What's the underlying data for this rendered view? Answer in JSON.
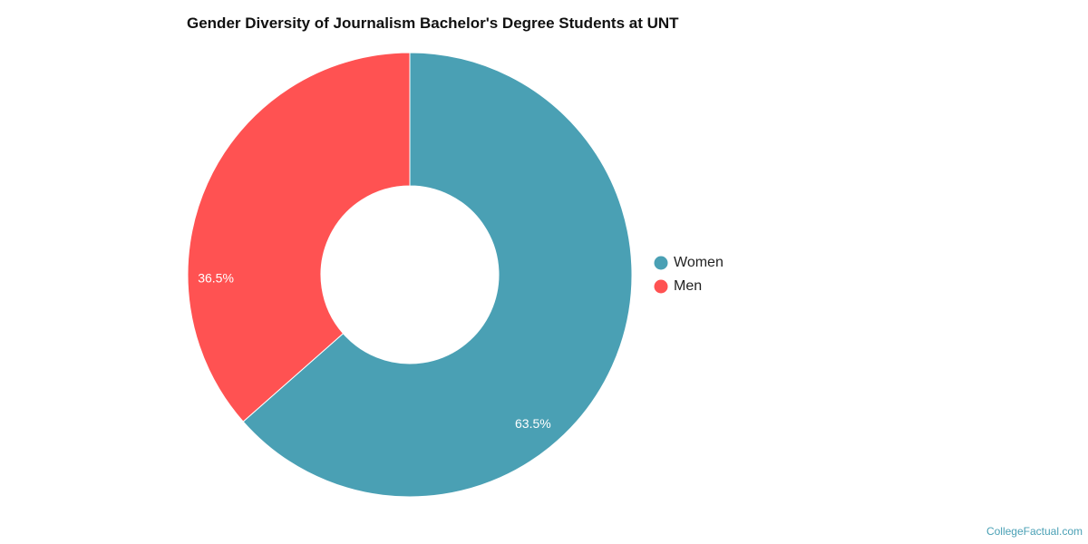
{
  "chart_data": {
    "type": "pie",
    "title": "Gender Diversity of Journalism Bachelor's Degree Students at UNT",
    "categories": [
      "Women",
      "Men"
    ],
    "values": [
      63.5,
      36.5
    ],
    "value_labels": [
      "63.5%",
      "36.5%"
    ],
    "colors": [
      "#4aa0b4",
      "#ff5252"
    ],
    "donut": true,
    "legend": "right"
  },
  "watermark": "CollegeFactual.com"
}
